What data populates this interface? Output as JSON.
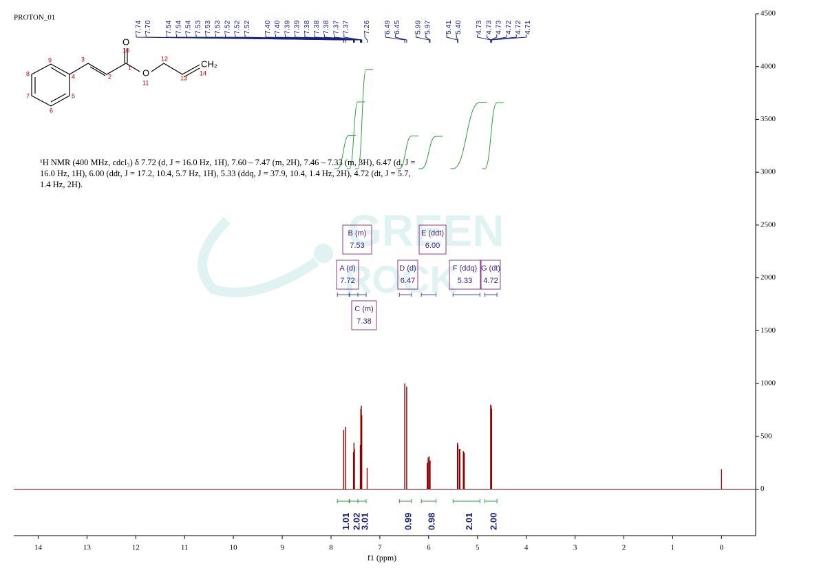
{
  "sample_name": "PROTON_01",
  "structure_labels": {
    "carbonyl_o": "O",
    "ester_o": "O",
    "terminal": "CH₂",
    "numbers": [
      "1",
      "2",
      "3",
      "4",
      "5",
      "6",
      "7",
      "8",
      "9",
      "10",
      "11",
      "12",
      "13",
      "14"
    ]
  },
  "description": "¹H NMR (400 MHz, cdcl₃) δ 7.72 (d, J = 16.0 Hz, 1H), 7.60 – 7.47 (m, 2H), 7.46 – 7.33 (m, 3H), 6.47 (d, J = 16.0 Hz, 1H), 6.00 (ddt, J = 17.2, 10.4, 5.7 Hz, 1H), 5.33 (ddq, J = 37.9, 10.4, 1.4 Hz, 2H), 4.72 (dt, J = 5.7, 1.4 Hz, 2H).",
  "watermark": [
    "GREEN",
    "ROCK"
  ],
  "chart_data": {
    "type": "nmr",
    "xlabel": "f1 (ppm)",
    "xlim": [
      14.5,
      -0.7
    ],
    "xticks": [
      14,
      13,
      12,
      11,
      10,
      9,
      8,
      7,
      6,
      5,
      4,
      3,
      2,
      1,
      0
    ],
    "ylim": [
      -440,
      4500
    ],
    "yticks": [
      0,
      500,
      1000,
      1500,
      2000,
      2500,
      3000,
      3500,
      4000,
      4500
    ],
    "color": "#8b0000",
    "peaks": {
      "x": [
        7.74,
        7.7,
        7.54,
        7.53,
        7.52,
        7.4,
        7.39,
        7.38,
        7.37,
        7.26,
        6.49,
        6.45,
        6.03,
        6.01,
        5.99,
        5.97,
        5.41,
        5.4,
        5.37,
        5.36,
        5.29,
        5.28,
        5.27,
        4.73,
        4.72,
        4.71,
        0.0
      ],
      "values": [
        560,
        590,
        350,
        440,
        380,
        420,
        760,
        790,
        700,
        200,
        1000,
        970,
        250,
        300,
        310,
        270,
        440,
        420,
        380,
        380,
        360,
        350,
        340,
        800,
        790,
        760,
        190
      ]
    },
    "peak_picks": {
      "values": [
        7.74,
        7.7,
        7.54,
        7.54,
        7.54,
        7.53,
        7.53,
        7.53,
        7.52,
        7.52,
        7.52,
        7.4,
        7.4,
        7.39,
        7.39,
        7.38,
        7.38,
        7.38,
        7.37,
        7.37,
        7.26,
        6.49,
        6.45,
        5.99,
        5.97,
        5.41,
        5.4,
        4.73,
        4.73,
        4.73,
        4.72,
        4.72,
        4.71
      ],
      "value_labels": [
        "7.74",
        "7.70",
        "7.54",
        "7.54",
        "7.54",
        "7.53",
        "7.53",
        "7.53",
        "7.52",
        "7.52",
        "7.52",
        "7.40",
        "7.40",
        "7.39",
        "7.39",
        "7.38",
        "7.38",
        "7.38",
        "7.37",
        "7.37",
        "7.26",
        "6.49",
        "6.45",
        "5.99",
        "5.97",
        "5.41",
        "5.40",
        "4.73",
        "4.73",
        "4.73",
        "4.72",
        "4.72",
        "4.71"
      ]
    },
    "multiplets": [
      {
        "label": "A (d)",
        "shift": 7.72,
        "range": [
          7.87,
          7.63
        ],
        "integral": 1.01
      },
      {
        "label": "B (m)",
        "shift": 7.53,
        "range": [
          7.62,
          7.45
        ],
        "integral": 2.02
      },
      {
        "label": "C (m)",
        "shift": 7.38,
        "range": [
          7.45,
          7.28
        ],
        "integral": 3.01
      },
      {
        "label": "D (d)",
        "shift": 6.47,
        "range": [
          6.6,
          6.35
        ],
        "integral": 0.99
      },
      {
        "label": "E (ddt)",
        "shift": 6.0,
        "shift_label": "6.00",
        "range": [
          6.15,
          5.85
        ],
        "integral": 0.98
      },
      {
        "label": "F (ddq)",
        "shift": 5.33,
        "range": [
          5.5,
          4.95
        ],
        "integral": 2.01
      },
      {
        "label": "G (dt)",
        "shift": 4.72,
        "range": [
          4.85,
          4.6
        ],
        "integral": 2,
        "integral_label": "2.00"
      }
    ]
  }
}
